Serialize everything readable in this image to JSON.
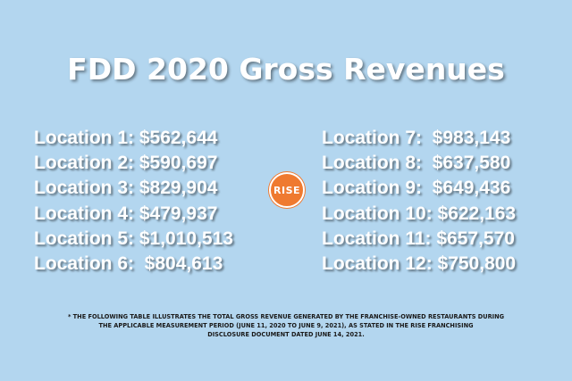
{
  "title": "FDD 2020 Gross Revenues",
  "left_column": [
    "Location 1: $562,644",
    "Location 2: $590,697",
    "Location 3: $829,904",
    "Location 4: $479,937",
    "Location 5: $1,010,513",
    "Location 6:  $804,613"
  ],
  "right_column": [
    "Location 7:  $983,143",
    "Location 8:  $637,580",
    "Location 9:  $649,436",
    "Location 10: $622,163",
    "Location 11: $657,570",
    "Location 12: $750,800"
  ],
  "logo": {
    "text": "RISE",
    "color": "#ef7a30"
  },
  "footnote": [
    "* THE FOLLOWING TABLE ILLUSTRATES THE TOTAL GROSS REVENUE GENERATED BY THE FRANCHISE-OWNED RESTAURANTS DURING",
    "THE APPLICABLE MEASUREMENT PERIOD (JUNE 11, 2020 TO JUNE 9, 2021), AS STATED IN THE RISE FRANCHISING",
    "DISCLOSURE DOCUMENT DATED JUNE 14, 2021."
  ]
}
